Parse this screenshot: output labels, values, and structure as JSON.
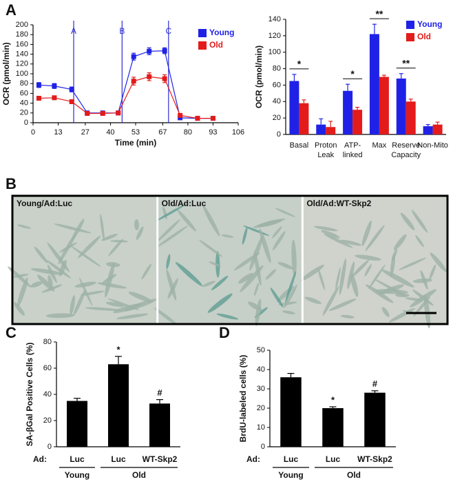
{
  "chart_data": [
    {
      "type": "line",
      "panel_label": "A",
      "xlabel": "Time (min)",
      "ylabel": "OCR (pmol/min)",
      "x": [
        3,
        11,
        20,
        28,
        36,
        44,
        52,
        60,
        68,
        76,
        85,
        93
      ],
      "xlim": [
        0,
        106
      ],
      "xticks": [
        0,
        13,
        27,
        40,
        53,
        67,
        80,
        93,
        106
      ],
      "ylim": [
        0,
        200
      ],
      "yticks": [
        0,
        20,
        40,
        60,
        80,
        100,
        120,
        140,
        160,
        180,
        200
      ],
      "events": [
        {
          "x": 21,
          "label": "A"
        },
        {
          "x": 46,
          "label": "B"
        },
        {
          "x": 70,
          "label": "C"
        }
      ],
      "legend": "top-right",
      "series": [
        {
          "name": "Young",
          "color": "#1f22e6",
          "values": [
            77,
            75,
            68,
            20,
            20,
            20,
            135,
            146,
            147,
            10,
            9,
            9
          ],
          "errors": [
            5,
            5,
            5,
            2,
            2,
            2,
            7,
            7,
            6,
            2,
            2,
            2
          ]
        },
        {
          "name": "Old",
          "color": "#e31b1b",
          "values": [
            50,
            51,
            43,
            19,
            19,
            20,
            85,
            94,
            90,
            15,
            9,
            9
          ],
          "errors": [
            3,
            3,
            4,
            2,
            2,
            2,
            8,
            8,
            8,
            2,
            2,
            2
          ]
        }
      ]
    },
    {
      "type": "grouped-bar",
      "ylabel": "OCR (pmol/min)",
      "categories": [
        [
          "Basal"
        ],
        [
          "Proton",
          "Leak"
        ],
        [
          "ATP-",
          "linked"
        ],
        [
          "Max"
        ],
        [
          "Reserve",
          "Capacity"
        ],
        [
          "Non-Mito"
        ]
      ],
      "ylim": [
        0,
        140
      ],
      "yticks": [
        0,
        20,
        40,
        60,
        80,
        100,
        120,
        140
      ],
      "legend": "top-right",
      "significance": [
        "*",
        null,
        "*",
        "**",
        "**",
        null
      ],
      "series": [
        {
          "name": "Young",
          "color": "#1f22e6",
          "values": [
            65,
            12,
            53,
            122,
            68,
            10
          ],
          "errors": [
            8,
            7,
            8,
            12,
            6,
            2
          ]
        },
        {
          "name": "Old",
          "color": "#e31b1b",
          "values": [
            38,
            9,
            30,
            70,
            40,
            12
          ],
          "errors": [
            4,
            7,
            3,
            2,
            3,
            3
          ]
        }
      ]
    },
    {
      "type": "bar",
      "panel_label": "C",
      "ylabel": "SA-βGal Positive Cells (%)",
      "xlabel_prefix": "Ad:",
      "groups": [
        {
          "name": "Young",
          "categories": [
            "Luc"
          ]
        },
        {
          "name": "Old",
          "categories": [
            "Luc",
            "WT-Skp2"
          ]
        }
      ],
      "values": [
        35,
        63,
        33
      ],
      "errors": [
        2,
        6,
        3
      ],
      "annotations": [
        null,
        "*",
        "#"
      ],
      "color": "#000000",
      "ylim": [
        0,
        80
      ],
      "yticks": [
        0,
        20,
        40,
        60,
        80
      ]
    },
    {
      "type": "bar",
      "panel_label": "D",
      "ylabel": "BrdU-labeled cells (%)",
      "xlabel_prefix": "Ad:",
      "groups": [
        {
          "name": "Young",
          "categories": [
            "Luc"
          ]
        },
        {
          "name": "Old",
          "categories": [
            "Luc",
            "WT-Skp2"
          ]
        }
      ],
      "values": [
        36,
        20,
        28
      ],
      "errors": [
        2,
        0.7,
        1
      ],
      "annotations": [
        null,
        "*",
        "#"
      ],
      "color": "#000000",
      "ylim": [
        0,
        50
      ],
      "yticks": [
        0,
        10,
        20,
        30,
        40,
        50
      ]
    }
  ],
  "figure_b": {
    "panel_label": "B",
    "panels": [
      "Young/Ad:Luc",
      "Old/Ad:Luc",
      "Old/Ad:WT-Skp2"
    ]
  }
}
